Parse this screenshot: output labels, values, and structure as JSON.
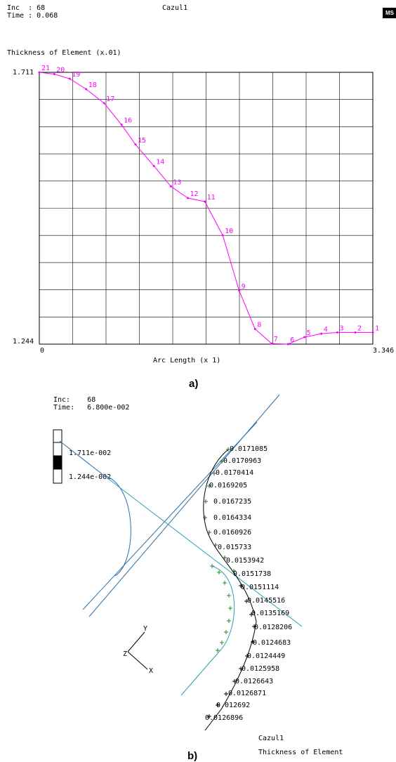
{
  "panel_a": {
    "header": {
      "inc_label": "Inc  :",
      "inc_value": "68",
      "time_label": "Time :",
      "time_value": "0.068"
    },
    "job_name": "Cazul1",
    "logo_text": "MS",
    "caption": "a)"
  },
  "panel_b": {
    "header": {
      "inc_label": "Inc:",
      "inc_value": "68",
      "time_label": "Time:",
      "time_value": "6.800e-002"
    },
    "legend": {
      "max": "1.711e-002",
      "min": "1.244e-002"
    },
    "footer": {
      "job": "Cazul1",
      "variable": "Thickness of Element"
    },
    "axes": {
      "y": "Y",
      "z": "Z",
      "x": "X"
    },
    "caption": "b)"
  },
  "chart_data": [
    {
      "type": "line",
      "title": "Thickness of Element (x.01)",
      "xlabel": "Arc Length (x 1)",
      "ylabel": "",
      "xlim": [
        0,
        3.346
      ],
      "ylim": [
        1.244,
        1.711
      ],
      "x_tick_labels": [
        "0",
        "3.346"
      ],
      "y_tick_labels": [
        "1.244",
        "1.711"
      ],
      "grid": true,
      "line_color": "#ff00ff",
      "points": [
        {
          "label": "21",
          "x": 0.0,
          "y": 1.711
        },
        {
          "label": "20",
          "x": 0.15,
          "y": 1.708
        },
        {
          "label": "19",
          "x": 0.305,
          "y": 1.7
        },
        {
          "label": "18",
          "x": 0.47,
          "y": 1.682
        },
        {
          "label": "17",
          "x": 0.65,
          "y": 1.658
        },
        {
          "label": "16",
          "x": 0.825,
          "y": 1.621
        },
        {
          "label": "15",
          "x": 0.965,
          "y": 1.587
        },
        {
          "label": "14",
          "x": 1.15,
          "y": 1.55
        },
        {
          "label": "13",
          "x": 1.32,
          "y": 1.515
        },
        {
          "label": "12",
          "x": 1.49,
          "y": 1.495
        },
        {
          "label": "11",
          "x": 1.66,
          "y": 1.489
        },
        {
          "label": "10",
          "x": 1.84,
          "y": 1.431
        },
        {
          "label": "9",
          "x": 2.005,
          "y": 1.336
        },
        {
          "label": "8",
          "x": 2.165,
          "y": 1.27
        },
        {
          "label": "7",
          "x": 2.33,
          "y": 1.245
        },
        {
          "label": "6",
          "x": 2.495,
          "y": 1.244
        },
        {
          "label": "5",
          "x": 2.66,
          "y": 1.256
        },
        {
          "label": "4",
          "x": 2.83,
          "y": 1.262
        },
        {
          "label": "3",
          "x": 2.99,
          "y": 1.264
        },
        {
          "label": "2",
          "x": 3.17,
          "y": 1.264
        },
        {
          "label": "1",
          "x": 3.346,
          "y": 1.264
        }
      ]
    },
    {
      "type": "scatter",
      "title": "Thickness of Element",
      "annotations": [
        "0.0171085",
        "0.0170963",
        "0.0170414",
        "0.0169205",
        "0.0167235",
        "0.0164334",
        "0.0160926",
        "0.015733",
        "0.0153942",
        "0.0151738",
        "0.0151114",
        "0.0145516",
        "0.0135169",
        "0.0128206",
        "0.0124683",
        "0.0124449",
        "0.0125958",
        "0.0126643",
        "0.0126871",
        "0.012692",
        "0.0126896"
      ]
    }
  ]
}
